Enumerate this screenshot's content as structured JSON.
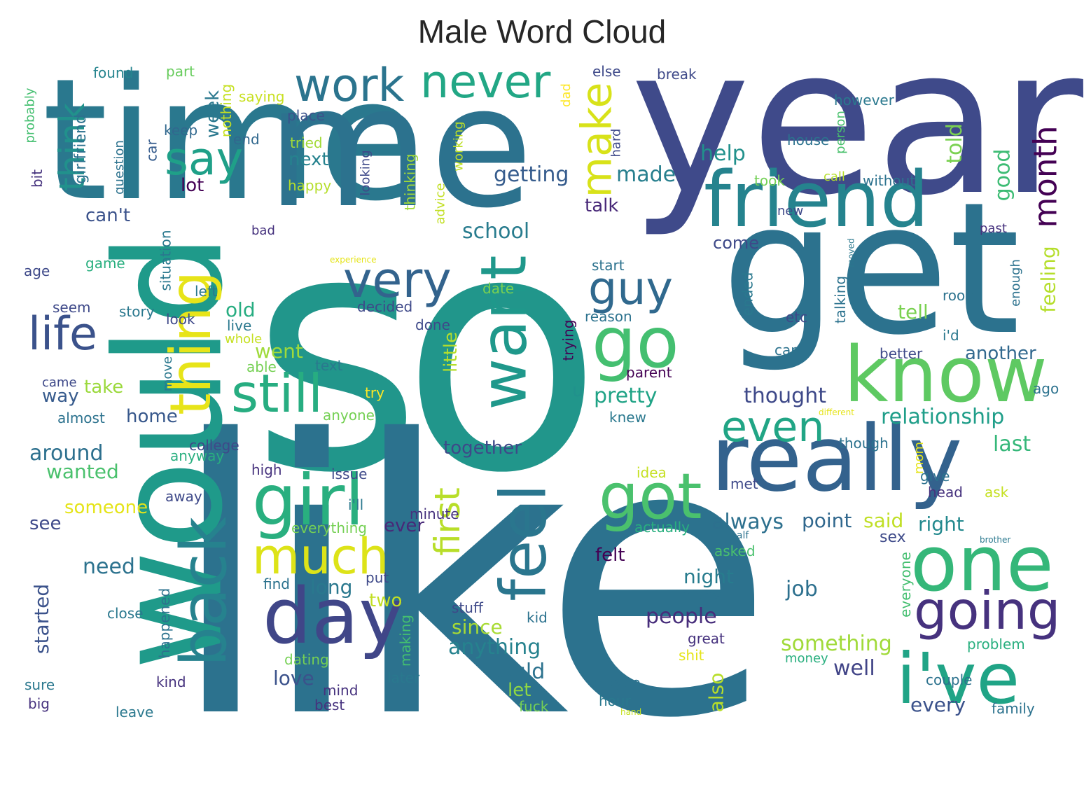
{
  "title": "Male Word Cloud",
  "palette": "viridis",
  "words": [
    {
      "text": "so",
      "color": "#21968b"
    },
    {
      "text": "like",
      "color": "#2c728e"
    },
    {
      "text": "year",
      "color": "#3f4a8a"
    },
    {
      "text": "time",
      "color": "#2a788e"
    },
    {
      "text": "me",
      "color": "#2c728e"
    },
    {
      "text": "would",
      "color": "#1f9a8a"
    },
    {
      "text": "get",
      "color": "#2c728e"
    },
    {
      "text": "really",
      "color": "#33628d"
    },
    {
      "text": "friend",
      "color": "#25838e"
    },
    {
      "text": "know",
      "color": "#5ec962"
    },
    {
      "text": "one",
      "color": "#35b779"
    },
    {
      "text": "i've",
      "color": "#20a486"
    },
    {
      "text": "want",
      "color": "#1f988b"
    },
    {
      "text": "day",
      "color": "#404688"
    },
    {
      "text": "girl",
      "color": "#29af7f"
    },
    {
      "text": "back",
      "color": "#26828e"
    },
    {
      "text": "feel",
      "color": "#2a768e"
    },
    {
      "text": "go",
      "color": "#44bf70"
    },
    {
      "text": "got",
      "color": "#4ac16d"
    },
    {
      "text": "thing",
      "color": "#e7e419"
    },
    {
      "text": "still",
      "color": "#27ad81"
    },
    {
      "text": "very",
      "color": "#33638d"
    },
    {
      "text": "much",
      "color": "#dde318"
    },
    {
      "text": "going",
      "color": "#46327e"
    },
    {
      "text": "work",
      "color": "#2b748e"
    },
    {
      "text": "never",
      "color": "#22a785"
    },
    {
      "text": "say",
      "color": "#1fa088"
    },
    {
      "text": "make",
      "color": "#d8e219"
    },
    {
      "text": "guy",
      "color": "#30698e"
    },
    {
      "text": "life",
      "color": "#3b528b"
    },
    {
      "text": "think",
      "color": "#21918c"
    },
    {
      "text": "month",
      "color": "#440154"
    },
    {
      "text": "first",
      "color": "#b8de29"
    },
    {
      "text": "even",
      "color": "#21a585"
    },
    {
      "text": "good",
      "color": "#3dbc74"
    },
    {
      "text": "told",
      "color": "#7ad151"
    },
    {
      "text": "help",
      "color": "#21918c"
    },
    {
      "text": "made",
      "color": "#277f8e"
    },
    {
      "text": "getting",
      "color": "#365c8d"
    },
    {
      "text": "lot",
      "color": "#440154"
    },
    {
      "text": "week",
      "color": "#2a788e"
    },
    {
      "text": "next",
      "color": "#26828e"
    },
    {
      "text": "can't",
      "color": "#3b528b"
    },
    {
      "text": "school",
      "color": "#287c8e"
    },
    {
      "text": "talk",
      "color": "#482878"
    },
    {
      "text": "pretty",
      "color": "#20a386"
    },
    {
      "text": "thought",
      "color": "#3e4989"
    },
    {
      "text": "relationship",
      "color": "#1f9e89"
    },
    {
      "text": "another",
      "color": "#31688e"
    },
    {
      "text": "tell",
      "color": "#7ad151"
    },
    {
      "text": "feeling",
      "color": "#b5de2b"
    },
    {
      "text": "last",
      "color": "#35b779"
    },
    {
      "text": "always",
      "color": "#2d708e"
    },
    {
      "text": "point",
      "color": "#31688e"
    },
    {
      "text": "said",
      "color": "#c0df25"
    },
    {
      "text": "right",
      "color": "#23898e"
    },
    {
      "text": "sex",
      "color": "#3e4a89"
    },
    {
      "text": "together",
      "color": "#3e4989"
    },
    {
      "text": "ever",
      "color": "#482878"
    },
    {
      "text": "night",
      "color": "#287c8e"
    },
    {
      "text": "people",
      "color": "#472d7b"
    },
    {
      "text": "job",
      "color": "#2d708e"
    },
    {
      "text": "something",
      "color": "#a0da39"
    },
    {
      "text": "well",
      "color": "#414487"
    },
    {
      "text": "every",
      "color": "#3b528b"
    },
    {
      "text": "could",
      "color": "#2c728e"
    },
    {
      "text": "anything",
      "color": "#26828e"
    },
    {
      "text": "since",
      "color": "#a8db34"
    },
    {
      "text": "long",
      "color": "#2a788e"
    },
    {
      "text": "two",
      "color": "#c2df23"
    },
    {
      "text": "also",
      "color": "#b8de29"
    },
    {
      "text": "love",
      "color": "#3b528b"
    },
    {
      "text": "let",
      "color": "#90d743"
    },
    {
      "text": "need",
      "color": "#2c728e"
    },
    {
      "text": "felt",
      "color": "#440154"
    },
    {
      "text": "started",
      "color": "#3b528b"
    },
    {
      "text": "around",
      "color": "#2d708e"
    },
    {
      "text": "wanted",
      "color": "#4ac16d"
    },
    {
      "text": "someone",
      "color": "#e5e419"
    },
    {
      "text": "see",
      "color": "#3e4989"
    },
    {
      "text": "way",
      "color": "#375b8d"
    },
    {
      "text": "take",
      "color": "#9bd93c"
    },
    {
      "text": "home",
      "color": "#38588c"
    },
    {
      "text": "went",
      "color": "#9fda3a"
    },
    {
      "text": "old",
      "color": "#27ad81"
    },
    {
      "text": "little",
      "color": "#b5de2b"
    },
    {
      "text": "u",
      "color": "#21918c"
    },
    {
      "text": "found",
      "color": "#25848e"
    },
    {
      "text": "part",
      "color": "#67cc5c"
    },
    {
      "text": "saying",
      "color": "#c8e020"
    },
    {
      "text": "place",
      "color": "#3b528b"
    },
    {
      "text": "keep",
      "color": "#31688e"
    },
    {
      "text": "end",
      "color": "#31688e"
    },
    {
      "text": "tried",
      "color": "#a2da37"
    },
    {
      "text": "happy",
      "color": "#b5de2b"
    },
    {
      "text": "girlfriend",
      "color": "#2c718e"
    },
    {
      "text": "probably",
      "color": "#44bf70"
    },
    {
      "text": "question",
      "color": "#2c728e"
    },
    {
      "text": "bit",
      "color": "#46337e"
    },
    {
      "text": "car",
      "color": "#365c8d"
    },
    {
      "text": "nothing",
      "color": "#c5e021"
    },
    {
      "text": "dad",
      "color": "#fde725"
    },
    {
      "text": "else",
      "color": "#3e4989"
    },
    {
      "text": "break",
      "color": "#3e4989"
    },
    {
      "text": "hard",
      "color": "#3e4989"
    },
    {
      "text": "however",
      "color": "#2a788e"
    },
    {
      "text": "house",
      "color": "#2c728e"
    },
    {
      "text": "person",
      "color": "#4ac16d"
    },
    {
      "text": "took",
      "color": "#73d056"
    },
    {
      "text": "call",
      "color": "#b5de2b"
    },
    {
      "text": "without",
      "color": "#2c728e"
    },
    {
      "text": "new",
      "color": "#3e4989"
    },
    {
      "text": "past",
      "color": "#46327e"
    },
    {
      "text": "advice",
      "color": "#c2df23"
    },
    {
      "text": "working",
      "color": "#bddf26"
    },
    {
      "text": "thinking",
      "color": "#a2da37"
    },
    {
      "text": "looking",
      "color": "#3e4989"
    },
    {
      "text": "bad",
      "color": "#46327e"
    },
    {
      "text": "game",
      "color": "#29af7f"
    },
    {
      "text": "experience",
      "color": "#e5e419"
    },
    {
      "text": "age",
      "color": "#3e4989"
    },
    {
      "text": "situation",
      "color": "#2a788e"
    },
    {
      "text": "left",
      "color": "#2a788e"
    },
    {
      "text": "seem",
      "color": "#3e4989"
    },
    {
      "text": "story",
      "color": "#2a788e"
    },
    {
      "text": "look",
      "color": "#3e4989"
    },
    {
      "text": "live",
      "color": "#2a788e"
    },
    {
      "text": "whole",
      "color": "#c5e021"
    },
    {
      "text": "able",
      "color": "#75d054"
    },
    {
      "text": "decided",
      "color": "#3e4989"
    },
    {
      "text": "done",
      "color": "#3e4989"
    },
    {
      "text": "date",
      "color": "#7ad151"
    },
    {
      "text": "start",
      "color": "#2c728e"
    },
    {
      "text": "reason",
      "color": "#2c728e"
    },
    {
      "text": "trying",
      "color": "#440154"
    },
    {
      "text": "parent",
      "color": "#440154"
    },
    {
      "text": "text",
      "color": "#2a788e"
    },
    {
      "text": "try",
      "color": "#fde725"
    },
    {
      "text": "came",
      "color": "#3e4989"
    },
    {
      "text": "move",
      "color": "#2a788e"
    },
    {
      "text": "almost",
      "color": "#2c728e"
    },
    {
      "text": "anyone",
      "color": "#75d054"
    },
    {
      "text": "knew",
      "color": "#2a788e"
    },
    {
      "text": "college",
      "color": "#3e4989"
    },
    {
      "text": "anyway",
      "color": "#29af7f"
    },
    {
      "text": "high",
      "color": "#46327e"
    },
    {
      "text": "issue",
      "color": "#3e4989"
    },
    {
      "text": "i'll",
      "color": "#2a788e"
    },
    {
      "text": "minute",
      "color": "#46327e"
    },
    {
      "text": "idea",
      "color": "#c5e021"
    },
    {
      "text": "away",
      "color": "#3e4989"
    },
    {
      "text": "everything",
      "color": "#75d054"
    },
    {
      "text": "actually",
      "color": "#29af7f"
    },
    {
      "text": "half",
      "color": "#2c728e"
    },
    {
      "text": "asked",
      "color": "#4ac16d"
    },
    {
      "text": "find",
      "color": "#2c728e"
    },
    {
      "text": "put",
      "color": "#3e4989"
    },
    {
      "text": "close",
      "color": "#2a788e"
    },
    {
      "text": "happened",
      "color": "#2c728e"
    },
    {
      "text": "stuff",
      "color": "#3e4989"
    },
    {
      "text": "kid",
      "color": "#2c728e"
    },
    {
      "text": "making",
      "color": "#44bf70"
    },
    {
      "text": "many",
      "color": "#2c728e"
    },
    {
      "text": "great",
      "color": "#46327e"
    },
    {
      "text": "shit",
      "color": "#e5e419"
    },
    {
      "text": "dating",
      "color": "#75d054"
    },
    {
      "text": "sure",
      "color": "#2a788e"
    },
    {
      "text": "kind",
      "color": "#46327e"
    },
    {
      "text": "mind",
      "color": "#46327e"
    },
    {
      "text": "later",
      "color": "#2a788e"
    },
    {
      "text": "maybe",
      "color": "#2c728e"
    },
    {
      "text": "hour",
      "color": "#2a788e"
    },
    {
      "text": "big",
      "color": "#46327e"
    },
    {
      "text": "leave",
      "color": "#2a788e"
    },
    {
      "text": "best",
      "color": "#46327e"
    },
    {
      "text": "fuck",
      "color": "#75d054"
    },
    {
      "text": "hand",
      "color": "#c5e021"
    },
    {
      "text": "family",
      "color": "#2c728e"
    },
    {
      "text": "couple",
      "color": "#2c728e"
    },
    {
      "text": "money",
      "color": "#29af7f"
    },
    {
      "text": "problem",
      "color": "#29af7f"
    },
    {
      "text": "everyone",
      "color": "#44bf70"
    },
    {
      "text": "brother",
      "color": "#2a788e"
    },
    {
      "text": "ask",
      "color": "#c5e021"
    },
    {
      "text": "head",
      "color": "#46327e"
    },
    {
      "text": "give",
      "color": "#2c728e"
    },
    {
      "text": "met",
      "color": "#3e4989"
    },
    {
      "text": "mom",
      "color": "#e5e419"
    },
    {
      "text": "though",
      "color": "#2c728e"
    },
    {
      "text": "different",
      "color": "#e5e419"
    },
    {
      "text": "ago",
      "color": "#2c728e"
    },
    {
      "text": "better",
      "color": "#3e4989"
    },
    {
      "text": "care",
      "color": "#2c728e"
    },
    {
      "text": "i'd",
      "color": "#2a788e"
    },
    {
      "text": "etc",
      "color": "#3e4989"
    },
    {
      "text": "room",
      "color": "#2c728e"
    },
    {
      "text": "enough",
      "color": "#2c728e"
    },
    {
      "text": "talking",
      "color": "#2c728e"
    },
    {
      "text": "ended",
      "color": "#2a788e"
    },
    {
      "text": "moved",
      "color": "#2a788e"
    },
    {
      "text": "come",
      "color": "#3e4989"
    }
  ]
}
